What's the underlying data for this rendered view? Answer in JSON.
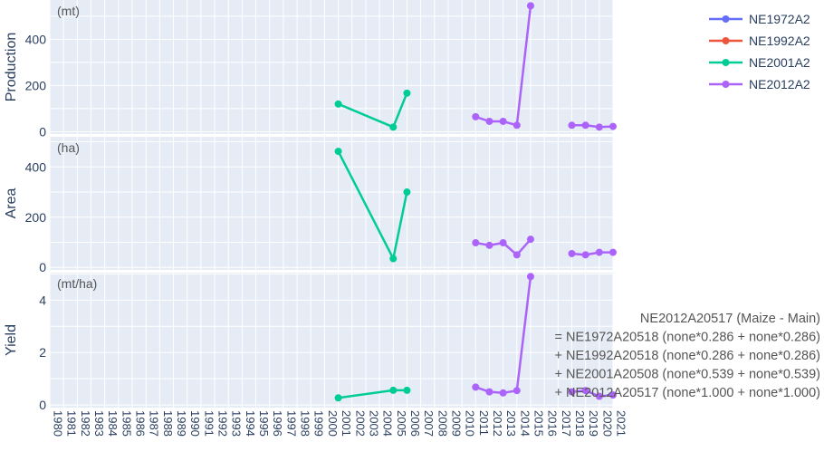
{
  "chart_data": {
    "type": "line",
    "x": [
      1980,
      1981,
      1982,
      1983,
      1984,
      1985,
      1986,
      1987,
      1988,
      1989,
      1990,
      1991,
      1992,
      1993,
      1994,
      1995,
      1996,
      1997,
      1998,
      1999,
      2000,
      2001,
      2002,
      2003,
      2004,
      2005,
      2006,
      2007,
      2008,
      2009,
      2010,
      2011,
      2012,
      2013,
      2014,
      2015,
      2016,
      2017,
      2018,
      2019,
      2020,
      2021
    ],
    "xlim": [
      1980,
      2021
    ],
    "x_tick_labels": [
      "1980",
      "1981",
      "1982",
      "1983",
      "1984",
      "1985",
      "1986",
      "1987",
      "1988",
      "1989",
      "1990",
      "1991",
      "1992",
      "1993",
      "1994",
      "1995",
      "1996",
      "1997",
      "1998",
      "1999",
      "2000",
      "2001",
      "2002",
      "2003",
      "2004",
      "2005",
      "2006",
      "2007",
      "2008",
      "2009",
      "2010",
      "2011",
      "2012",
      "2013",
      "2014",
      "2015",
      "2016",
      "2017",
      "2018",
      "2019",
      "2020",
      "2021"
    ],
    "panels": [
      {
        "ylabel": "Production",
        "unit": "(mt)",
        "ylim": [
          -10,
          570
        ],
        "yticks": [
          0,
          200,
          400
        ]
      },
      {
        "ylabel": "Area",
        "unit": "(ha)",
        "ylim": [
          -10,
          520
        ],
        "yticks": [
          0,
          200,
          400
        ]
      },
      {
        "ylabel": "Yield",
        "unit": "(mt/ha)",
        "ylim": [
          -0.1,
          5.05
        ],
        "yticks": [
          0,
          2,
          4
        ]
      }
    ],
    "series": [
      {
        "name": "NE1972A2",
        "color": "#636efa",
        "points": [
          [],
          [],
          []
        ]
      },
      {
        "name": "NE1992A2",
        "color": "#ef553b",
        "points": [
          [],
          [],
          []
        ]
      },
      {
        "name": "NE2001A2",
        "color": "#00cc96",
        "points": [
          [
            [
              2001,
              120
            ],
            [
              2005,
              20
            ],
            [
              2006,
              167
            ]
          ],
          [
            [
              2001,
              462
            ],
            [
              2005,
              35
            ],
            [
              2006,
              300
            ]
          ],
          [
            [
              2001,
              0.27
            ],
            [
              2005,
              0.56
            ],
            [
              2006,
              0.56
            ]
          ]
        ]
      },
      {
        "name": "NE2012A2",
        "color": "#ab63fa",
        "points": [
          [
            [
              2011,
              65
            ],
            [
              2012,
              45
            ],
            [
              2013,
              45
            ],
            [
              2014,
              28
            ],
            [
              2015,
              545
            ],
            [
              null,
              null
            ],
            [
              2018,
              28
            ],
            [
              2019,
              28
            ],
            [
              2020,
              20
            ],
            [
              2021,
              23
            ]
          ],
          [
            [
              2011,
              98
            ],
            [
              2012,
              88
            ],
            [
              2013,
              98
            ],
            [
              2014,
              50
            ],
            [
              2015,
              112
            ],
            [
              null,
              null
            ],
            [
              2018,
              55
            ],
            [
              2019,
              50
            ],
            [
              2020,
              60
            ],
            [
              2021,
              60
            ]
          ],
          [
            [
              2011,
              0.68
            ],
            [
              2012,
              0.5
            ],
            [
              2013,
              0.46
            ],
            [
              2014,
              0.55
            ],
            [
              2015,
              4.9
            ],
            [
              null,
              null
            ],
            [
              2018,
              0.5
            ],
            [
              2019,
              0.55
            ],
            [
              2020,
              0.33
            ],
            [
              2021,
              0.38
            ]
          ]
        ]
      }
    ],
    "legend_position": "top-right",
    "annotation": [
      "NE2012A20517 (Maize - Main)",
      "= NE1972A20518 (none*0.286 + none*0.286)",
      "+ NE1992A20518 (none*0.286 + none*0.286)",
      "+ NE2001A20508 (none*0.539 + none*0.539)",
      "+ NE2012A20517 (none*1.000 + none*1.000)"
    ]
  }
}
